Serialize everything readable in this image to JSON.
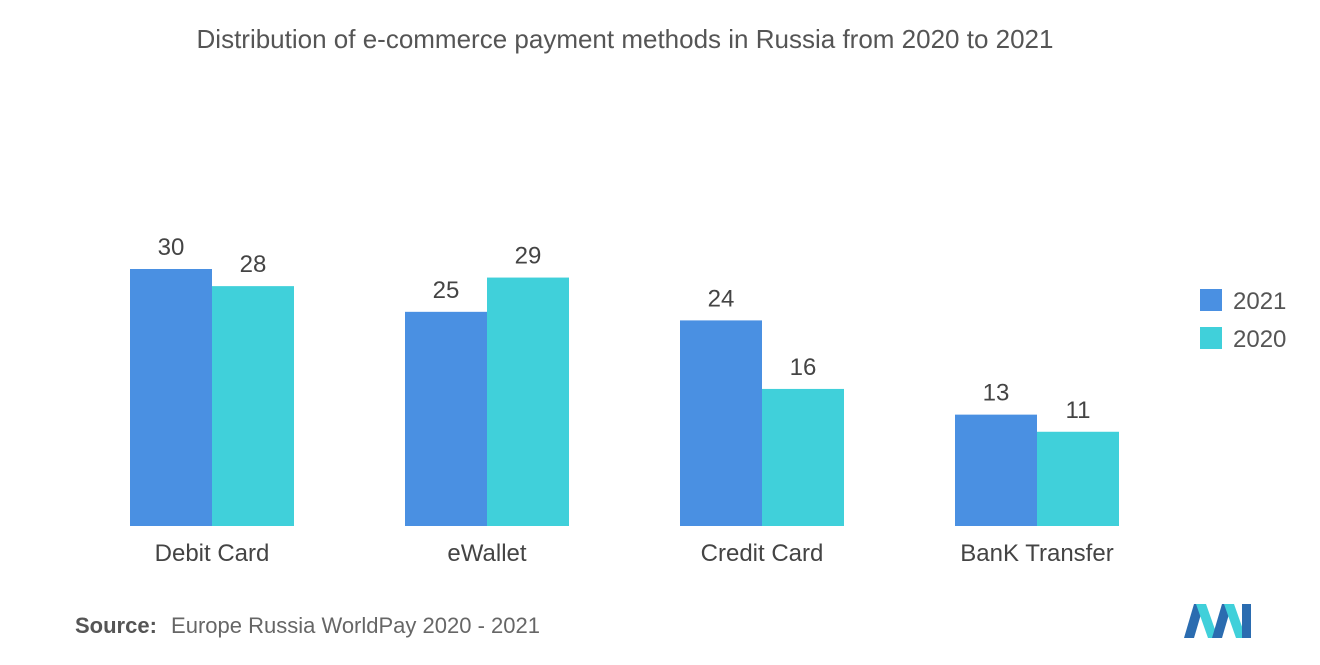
{
  "chart_data": {
    "type": "bar",
    "title": "Distribution of e-commerce payment methods in Russia from 2020 to 2021",
    "categories": [
      "Debit Card",
      "eWallet",
      "Credit Card",
      "BanK Transfer"
    ],
    "series": [
      {
        "name": "2021",
        "values": [
          30,
          25,
          24,
          13
        ],
        "color": "#4a90e2"
      },
      {
        "name": "2020",
        "values": [
          28,
          29,
          16,
          11
        ],
        "color": "#40d0da"
      }
    ],
    "ylim": [
      0,
      30
    ],
    "grid": false,
    "legend": "right"
  },
  "source": {
    "label": "Source:",
    "text": "Europe Russia WorldPay 2020 - 2021"
  },
  "logo": {
    "icon": "mordor-intelligence-logo-icon",
    "colors": [
      "#2b6cb0",
      "#40d0da"
    ]
  }
}
